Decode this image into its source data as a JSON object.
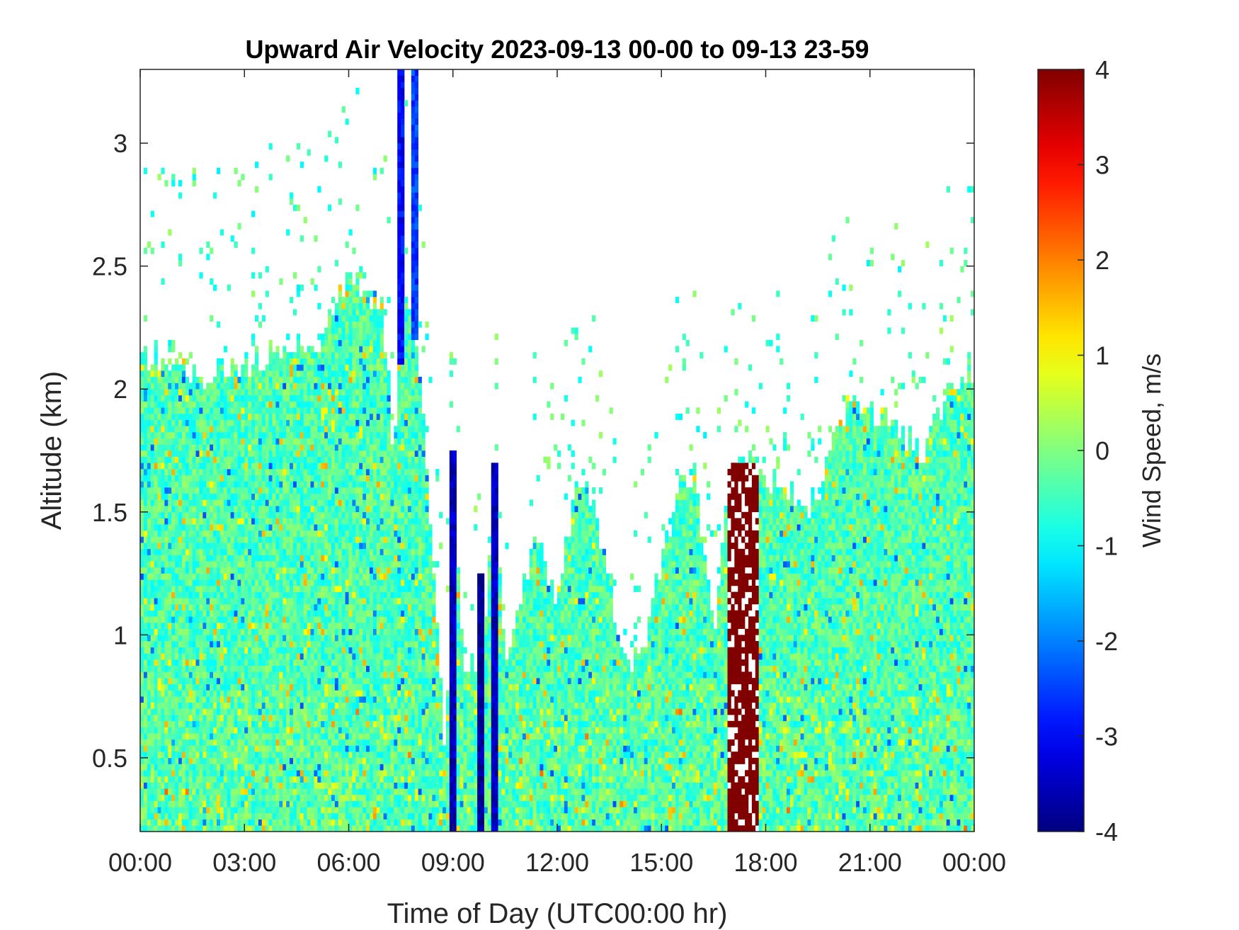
{
  "chart_data": {
    "type": "heatmap",
    "title": "Upward Air Velocity 2023-09-13 00-00 to 09-13 23-59",
    "xlabel": "Time of Day (UTC00:00 hr)",
    "ylabel": "Altitude (km)",
    "xlim": [
      0,
      24
    ],
    "ylim": [
      0.2,
      3.3
    ],
    "x_ticks": [
      {
        "value": 0,
        "label": "00:00"
      },
      {
        "value": 3,
        "label": "03:00"
      },
      {
        "value": 6,
        "label": "06:00"
      },
      {
        "value": 9,
        "label": "09:00"
      },
      {
        "value": 12,
        "label": "12:00"
      },
      {
        "value": 15,
        "label": "15:00"
      },
      {
        "value": 18,
        "label": "18:00"
      },
      {
        "value": 21,
        "label": "21:00"
      },
      {
        "value": 24,
        "label": "00:00"
      }
    ],
    "y_ticks": [
      {
        "value": 0.5,
        "label": "0.5"
      },
      {
        "value": 1,
        "label": "1"
      },
      {
        "value": 1.5,
        "label": "1.5"
      },
      {
        "value": 2,
        "label": "2"
      },
      {
        "value": 2.5,
        "label": "2.5"
      },
      {
        "value": 3,
        "label": "3"
      }
    ],
    "colorbar": {
      "label": "Wind Speed, m/s",
      "range": [
        -4,
        4
      ],
      "colormap": "jet",
      "ticks": [
        {
          "value": 4,
          "label": "4"
        },
        {
          "value": 3,
          "label": "3"
        },
        {
          "value": 2,
          "label": "2"
        },
        {
          "value": 1,
          "label": "1"
        },
        {
          "value": 0,
          "label": "0"
        },
        {
          "value": -1,
          "label": "-1"
        },
        {
          "value": -2,
          "label": "-2"
        },
        {
          "value": -3,
          "label": "-3"
        },
        {
          "value": -4,
          "label": "-4"
        }
      ]
    },
    "data_top_km": [
      {
        "t": 0.0,
        "top": 2.1
      },
      {
        "t": 0.5,
        "top": 2.15
      },
      {
        "t": 1.0,
        "top": 2.1
      },
      {
        "t": 1.5,
        "top": 2.05
      },
      {
        "t": 2.0,
        "top": 2.05
      },
      {
        "t": 2.5,
        "top": 2.1
      },
      {
        "t": 3.0,
        "top": 2.1
      },
      {
        "t": 4.0,
        "top": 2.15
      },
      {
        "t": 4.5,
        "top": 2.2
      },
      {
        "t": 5.0,
        "top": 2.15
      },
      {
        "t": 5.5,
        "top": 2.3
      },
      {
        "t": 6.0,
        "top": 2.45
      },
      {
        "t": 6.5,
        "top": 2.4
      },
      {
        "t": 7.0,
        "top": 2.3
      },
      {
        "t": 7.3,
        "top": 1.75
      },
      {
        "t": 7.6,
        "top": 2.35
      },
      {
        "t": 8.0,
        "top": 2.2
      },
      {
        "t": 8.5,
        "top": 1.2
      },
      {
        "t": 8.8,
        "top": 0.45
      },
      {
        "t": 9.0,
        "top": 1.7
      },
      {
        "t": 9.3,
        "top": 0.9
      },
      {
        "t": 9.8,
        "top": 0.85
      },
      {
        "t": 10.2,
        "top": 1.6
      },
      {
        "t": 10.5,
        "top": 0.85
      },
      {
        "t": 11.0,
        "top": 1.2
      },
      {
        "t": 11.5,
        "top": 1.4
      },
      {
        "t": 12.0,
        "top": 1.1
      },
      {
        "t": 12.5,
        "top": 1.6
      },
      {
        "t": 13.0,
        "top": 1.55
      },
      {
        "t": 13.5,
        "top": 1.2
      },
      {
        "t": 14.0,
        "top": 0.85
      },
      {
        "t": 14.5,
        "top": 0.95
      },
      {
        "t": 15.0,
        "top": 1.3
      },
      {
        "t": 15.5,
        "top": 1.6
      },
      {
        "t": 16.0,
        "top": 1.65
      },
      {
        "t": 16.5,
        "top": 1.0
      },
      {
        "t": 17.0,
        "top": 1.7
      },
      {
        "t": 17.5,
        "top": 1.7
      },
      {
        "t": 18.0,
        "top": 1.65
      },
      {
        "t": 18.5,
        "top": 1.6
      },
      {
        "t": 19.0,
        "top": 1.55
      },
      {
        "t": 19.5,
        "top": 1.5
      },
      {
        "t": 20.0,
        "top": 1.85
      },
      {
        "t": 20.5,
        "top": 1.95
      },
      {
        "t": 21.0,
        "top": 1.9
      },
      {
        "t": 21.5,
        "top": 1.85
      },
      {
        "t": 22.0,
        "top": 1.8
      },
      {
        "t": 22.5,
        "top": 1.75
      },
      {
        "t": 23.0,
        "top": 1.9
      },
      {
        "t": 23.5,
        "top": 2.05
      },
      {
        "t": 24.0,
        "top": 2.1
      }
    ],
    "strong_updraft_band": {
      "t_start": 16.95,
      "t_end": 17.8,
      "top_km": 1.7,
      "value": 4
    },
    "strong_downdraft_columns": [
      {
        "t": 7.5,
        "alt_from": 2.1,
        "alt_to": 3.3,
        "value": -3
      },
      {
        "t": 7.9,
        "alt_from": 2.2,
        "alt_to": 3.3,
        "value": -2.5
      },
      {
        "t": 9.0,
        "alt_from": 0.2,
        "alt_to": 1.75,
        "value": -3.5
      },
      {
        "t": 9.8,
        "alt_from": 0.2,
        "alt_to": 1.25,
        "value": -3.8
      },
      {
        "t": 10.2,
        "alt_from": 0.2,
        "alt_to": 1.7,
        "value": -3.5
      }
    ]
  }
}
